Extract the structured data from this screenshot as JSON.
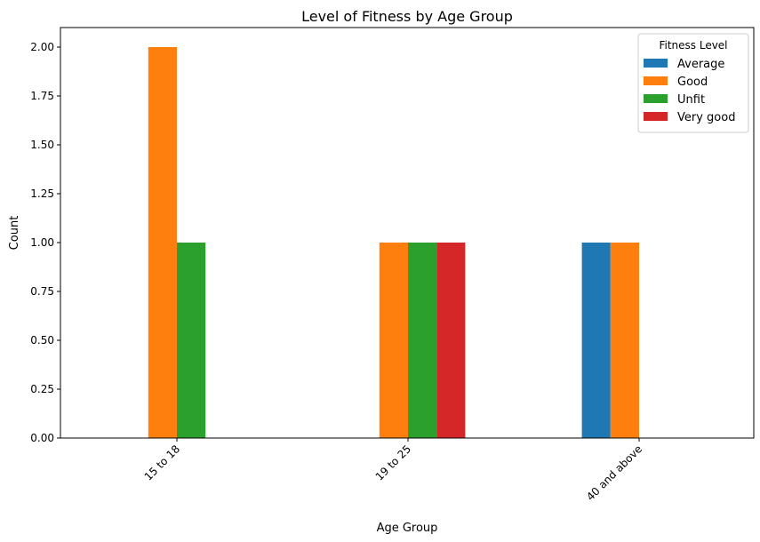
{
  "chart_data": {
    "type": "bar",
    "title": "Level of Fitness by Age Group",
    "xlabel": "Age Group",
    "ylabel": "Count",
    "categories": [
      "15 to 18",
      "19 to 25",
      "40 and above"
    ],
    "series": [
      {
        "name": "Average",
        "color": "#1f77b4",
        "values": [
          0,
          0,
          1
        ]
      },
      {
        "name": "Good",
        "color": "#ff7f0e",
        "values": [
          2,
          1,
          1
        ]
      },
      {
        "name": "Unfit",
        "color": "#2ca02c",
        "values": [
          1,
          1,
          0
        ]
      },
      {
        "name": "Very good",
        "color": "#d62728",
        "values": [
          0,
          1,
          0
        ]
      }
    ],
    "ylim": [
      0,
      2.1
    ],
    "yticks": [
      "0.00",
      "0.25",
      "0.50",
      "0.75",
      "1.00",
      "1.25",
      "1.50",
      "1.75",
      "2.00"
    ],
    "grid": false,
    "legend_title": "Fitness Level",
    "legend_position": "top-right",
    "x_tick_rotation": 45
  }
}
